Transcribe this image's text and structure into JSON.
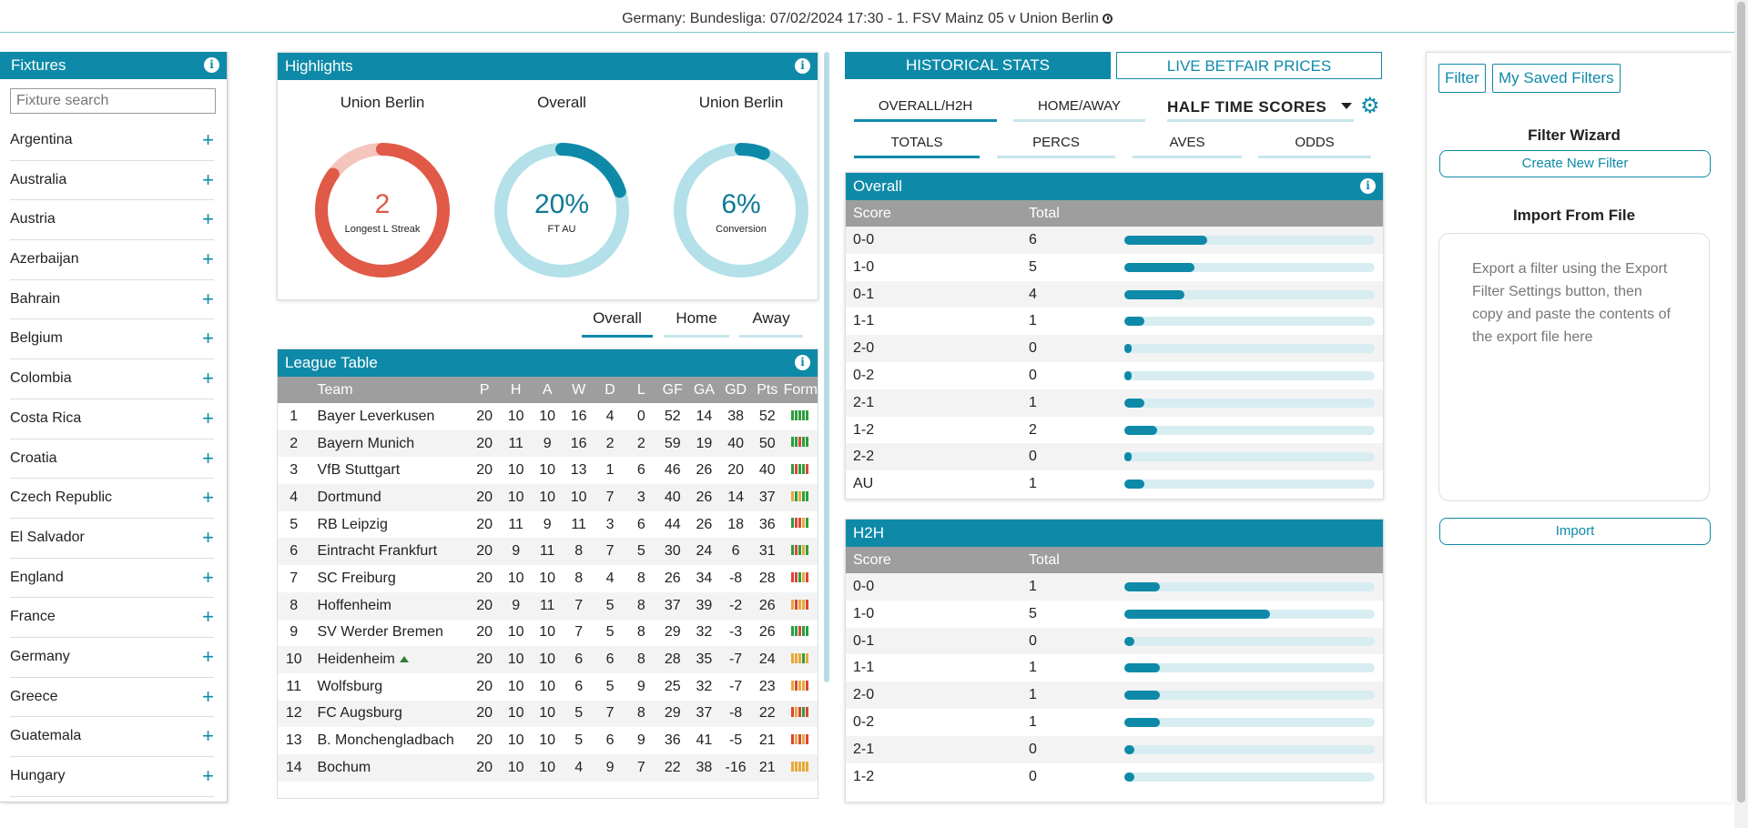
{
  "header": {
    "title": "Germany: Bundesliga: 07/02/2024 17:30 - 1. FSV Mainz 05 v Union Berlin"
  },
  "fixtures": {
    "title": "Fixtures",
    "search_placeholder": "Fixture search",
    "countries": [
      "Argentina",
      "Australia",
      "Austria",
      "Azerbaijan",
      "Bahrain",
      "Belgium",
      "Colombia",
      "Costa Rica",
      "Croatia",
      "Czech Republic",
      "El Salvador",
      "England",
      "France",
      "Germany",
      "Greece",
      "Guatemala",
      "Hungary"
    ]
  },
  "highlights": {
    "title": "Highlights",
    "items": [
      {
        "team": "Union Berlin",
        "value": "2",
        "label": "Longest L Streak",
        "pct": 0.85,
        "color": "#e05a47",
        "track": "#f4c4bd",
        "value_color": "#e05a47"
      },
      {
        "team": "Overall",
        "value": "20%",
        "label": "FT AU",
        "pct": 0.2,
        "color": "#0e8aa8",
        "track": "#b3e0e9",
        "value_color": "#0e7a96"
      },
      {
        "team": "Union Berlin",
        "value": "6%",
        "label": "Conversion",
        "pct": 0.06,
        "color": "#0e8aa8",
        "track": "#b3e0e9",
        "value_color": "#0e7a96"
      }
    ]
  },
  "table_tabs": [
    "Overall",
    "Home",
    "Away"
  ],
  "league": {
    "title": "League Table",
    "headers": [
      "Team",
      "P",
      "H",
      "A",
      "W",
      "D",
      "L",
      "GF",
      "GA",
      "GD",
      "Pts",
      "Form"
    ],
    "rows": [
      {
        "pos": "1",
        "team": "Bayer Leverkusen",
        "p": "20",
        "h": "10",
        "a": "10",
        "w": "16",
        "d": "4",
        "l": "0",
        "gf": "52",
        "ga": "14",
        "gd": "38",
        "pts": "52",
        "form": [
          "#2e9e3e",
          "#2e9e3e",
          "#2e9e3e",
          "#2e9e3e",
          "#2e9e3e"
        ]
      },
      {
        "pos": "2",
        "team": "Bayern Munich",
        "p": "20",
        "h": "11",
        "a": "9",
        "w": "16",
        "d": "2",
        "l": "2",
        "gf": "59",
        "ga": "19",
        "gd": "40",
        "pts": "50",
        "form": [
          "#2e9e3e",
          "#2e9e3e",
          "#d9473b",
          "#2e9e3e",
          "#2e9e3e"
        ]
      },
      {
        "pos": "3",
        "team": "VfB Stuttgart",
        "p": "20",
        "h": "10",
        "a": "10",
        "w": "13",
        "d": "1",
        "l": "6",
        "gf": "46",
        "ga": "26",
        "gd": "20",
        "pts": "40",
        "form": [
          "#2e9e3e",
          "#d9473b",
          "#2e9e3e",
          "#2e9e3e",
          "#d9473b"
        ]
      },
      {
        "pos": "4",
        "team": "Dortmund",
        "p": "20",
        "h": "10",
        "a": "10",
        "w": "10",
        "d": "7",
        "l": "3",
        "gf": "40",
        "ga": "26",
        "gd": "14",
        "pts": "37",
        "form": [
          "#e8a93a",
          "#2e9e3e",
          "#e8a93a",
          "#2e9e3e",
          "#2e9e3e"
        ]
      },
      {
        "pos": "5",
        "team": "RB Leipzig",
        "p": "20",
        "h": "11",
        "a": "9",
        "w": "11",
        "d": "3",
        "l": "6",
        "gf": "44",
        "ga": "26",
        "gd": "18",
        "pts": "36",
        "form": [
          "#2e9e3e",
          "#d9473b",
          "#d9473b",
          "#e8a93a",
          "#2e9e3e"
        ]
      },
      {
        "pos": "6",
        "team": "Eintracht Frankfurt",
        "p": "20",
        "h": "9",
        "a": "11",
        "w": "8",
        "d": "7",
        "l": "5",
        "gf": "30",
        "ga": "24",
        "gd": "6",
        "pts": "31",
        "form": [
          "#2e9e3e",
          "#d9473b",
          "#2e9e3e",
          "#e8a93a",
          "#2e9e3e"
        ]
      },
      {
        "pos": "7",
        "team": "SC Freiburg",
        "p": "20",
        "h": "10",
        "a": "10",
        "w": "8",
        "d": "4",
        "l": "8",
        "gf": "26",
        "ga": "34",
        "gd": "-8",
        "pts": "28",
        "form": [
          "#d9473b",
          "#d9473b",
          "#2e9e3e",
          "#e8a93a",
          "#d9473b"
        ]
      },
      {
        "pos": "8",
        "team": "Hoffenheim",
        "p": "20",
        "h": "9",
        "a": "11",
        "w": "7",
        "d": "5",
        "l": "8",
        "gf": "37",
        "ga": "39",
        "gd": "-2",
        "pts": "26",
        "form": [
          "#e8a93a",
          "#d9473b",
          "#e8a93a",
          "#e8a93a",
          "#d9473b"
        ]
      },
      {
        "pos": "9",
        "team": "SV Werder Bremen",
        "p": "20",
        "h": "10",
        "a": "10",
        "w": "7",
        "d": "5",
        "l": "8",
        "gf": "29",
        "ga": "32",
        "gd": "-3",
        "pts": "26",
        "form": [
          "#2e9e3e",
          "#2e9e3e",
          "#d9473b",
          "#2e9e3e",
          "#2e9e3e"
        ]
      },
      {
        "pos": "10",
        "team": "Heidenheim",
        "up": true,
        "p": "20",
        "h": "10",
        "a": "10",
        "w": "6",
        "d": "6",
        "l": "8",
        "gf": "28",
        "ga": "35",
        "gd": "-7",
        "pts": "24",
        "form": [
          "#e8a93a",
          "#e8a93a",
          "#e8a93a",
          "#2e9e3e",
          "#e8a93a"
        ]
      },
      {
        "pos": "11",
        "team": "Wolfsburg",
        "p": "20",
        "h": "10",
        "a": "10",
        "w": "6",
        "d": "5",
        "l": "9",
        "gf": "25",
        "ga": "32",
        "gd": "-7",
        "pts": "23",
        "form": [
          "#e8a93a",
          "#d9473b",
          "#e8a93a",
          "#e8a93a",
          "#d9473b"
        ]
      },
      {
        "pos": "12",
        "team": "FC Augsburg",
        "p": "20",
        "h": "10",
        "a": "10",
        "w": "5",
        "d": "7",
        "l": "8",
        "gf": "29",
        "ga": "37",
        "gd": "-8",
        "pts": "22",
        "form": [
          "#d9473b",
          "#e8a93a",
          "#d9473b",
          "#2e9e3e",
          "#d9473b"
        ]
      },
      {
        "pos": "13",
        "team": "B. Monchengladbach",
        "p": "20",
        "h": "10",
        "a": "10",
        "w": "5",
        "d": "6",
        "l": "9",
        "gf": "36",
        "ga": "41",
        "gd": "-5",
        "pts": "21",
        "form": [
          "#d9473b",
          "#e8a93a",
          "#d9473b",
          "#e8a93a",
          "#d9473b"
        ]
      },
      {
        "pos": "14",
        "team": "Bochum",
        "p": "20",
        "h": "10",
        "a": "10",
        "w": "4",
        "d": "9",
        "l": "7",
        "gf": "22",
        "ga": "38",
        "gd": "-16",
        "pts": "21",
        "form": [
          "#e8a93a",
          "#e8a93a",
          "#e8a93a",
          "#e8a93a",
          "#e8a93a"
        ]
      }
    ]
  },
  "stats": {
    "tab_active": "HISTORICAL STATS",
    "tab_inactive": "LIVE BETFAIR PRICES",
    "row1": [
      "OVERALL/H2H",
      "HOME/AWAY"
    ],
    "select": "HALF TIME SCORES",
    "row2": [
      "TOTALS",
      "PERCS",
      "AVES",
      "ODDS"
    ],
    "overall": {
      "title": "Overall",
      "col1": "Score",
      "col2": "Total",
      "rows": [
        {
          "score": "0-0",
          "total": "6",
          "pct": 0.33
        },
        {
          "score": "1-0",
          "total": "5",
          "pct": 0.28
        },
        {
          "score": "0-1",
          "total": "4",
          "pct": 0.24
        },
        {
          "score": "1-1",
          "total": "1",
          "pct": 0.08
        },
        {
          "score": "2-0",
          "total": "0",
          "pct": 0.03
        },
        {
          "score": "0-2",
          "total": "0",
          "pct": 0.03
        },
        {
          "score": "2-1",
          "total": "1",
          "pct": 0.08
        },
        {
          "score": "1-2",
          "total": "2",
          "pct": 0.13
        },
        {
          "score": "2-2",
          "total": "0",
          "pct": 0.03
        },
        {
          "score": "AU",
          "total": "1",
          "pct": 0.08
        }
      ]
    },
    "h2h": {
      "title": "H2H",
      "col1": "Score",
      "col2": "Total",
      "rows": [
        {
          "score": "0-0",
          "total": "1",
          "pct": 0.14
        },
        {
          "score": "1-0",
          "total": "5",
          "pct": 0.58
        },
        {
          "score": "0-1",
          "total": "0",
          "pct": 0.04
        },
        {
          "score": "1-1",
          "total": "1",
          "pct": 0.14
        },
        {
          "score": "2-0",
          "total": "1",
          "pct": 0.14
        },
        {
          "score": "0-2",
          "total": "1",
          "pct": 0.14
        },
        {
          "score": "2-1",
          "total": "0",
          "pct": 0.04
        },
        {
          "score": "1-2",
          "total": "0",
          "pct": 0.04
        }
      ]
    }
  },
  "filters": {
    "filter_btn": "Filter",
    "saved_btn": "My Saved Filters",
    "wizard_title": "Filter Wizard",
    "create_btn": "Create New Filter",
    "import_title": "Import From File",
    "import_placeholder": "Export a filter using the Export Filter Settings button, then copy and paste the contents of the export file here",
    "import_btn": "Import"
  }
}
